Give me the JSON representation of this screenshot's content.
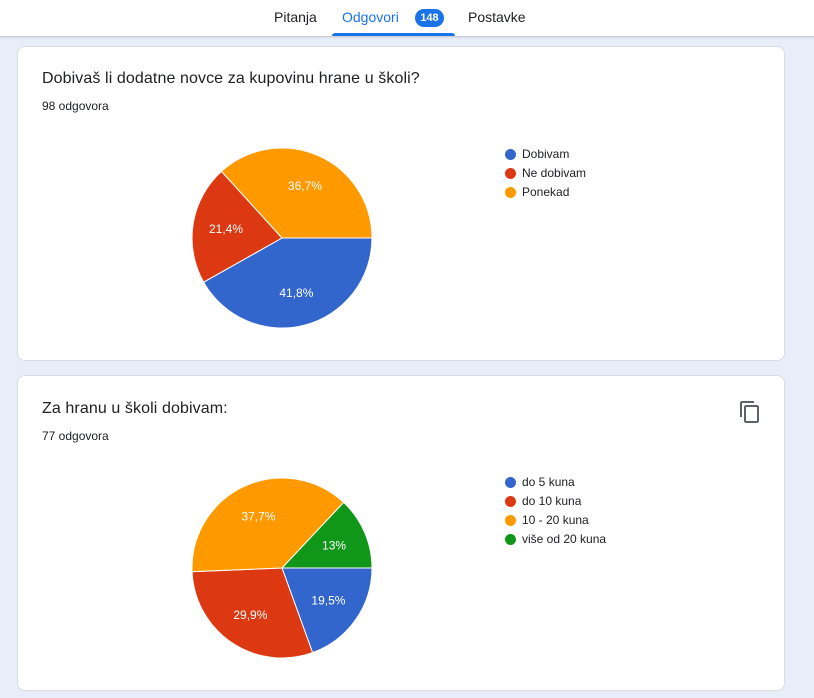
{
  "tabs": [
    {
      "label": "Pitanja"
    },
    {
      "label": "Odgovori",
      "badge": "148"
    },
    {
      "label": "Postavke"
    }
  ],
  "questions": [
    {
      "title": "Dobivaš li dodatne novce za kupovinu hrane u školi?",
      "count": "98 odgovora",
      "chart_data": {
        "type": "pie",
        "categories": [
          "Dobivam",
          "Ne dobivam",
          "Ponekad"
        ],
        "values": [
          41.8,
          21.4,
          36.7
        ],
        "labels": [
          "41,8%",
          "21,4%",
          "36,7%"
        ],
        "colors": [
          "#3366cc",
          "#dc3912",
          "#ff9900"
        ],
        "legend": "right"
      }
    },
    {
      "title": "Za hranu u školi dobivam:",
      "count": "77 odgovora",
      "chart_data": {
        "type": "pie",
        "categories": [
          "do 5 kuna",
          "do 10 kuna",
          "10 - 20 kuna",
          "više od 20 kuna"
        ],
        "values": [
          19.5,
          29.9,
          37.7,
          13
        ],
        "labels": [
          "19,5%",
          "29,9%",
          "37,7%",
          "13%"
        ],
        "colors": [
          "#3366cc",
          "#dc3912",
          "#ff9900",
          "#109618"
        ],
        "legend": "right"
      }
    }
  ],
  "icons": {
    "copy": "copy-icon"
  }
}
